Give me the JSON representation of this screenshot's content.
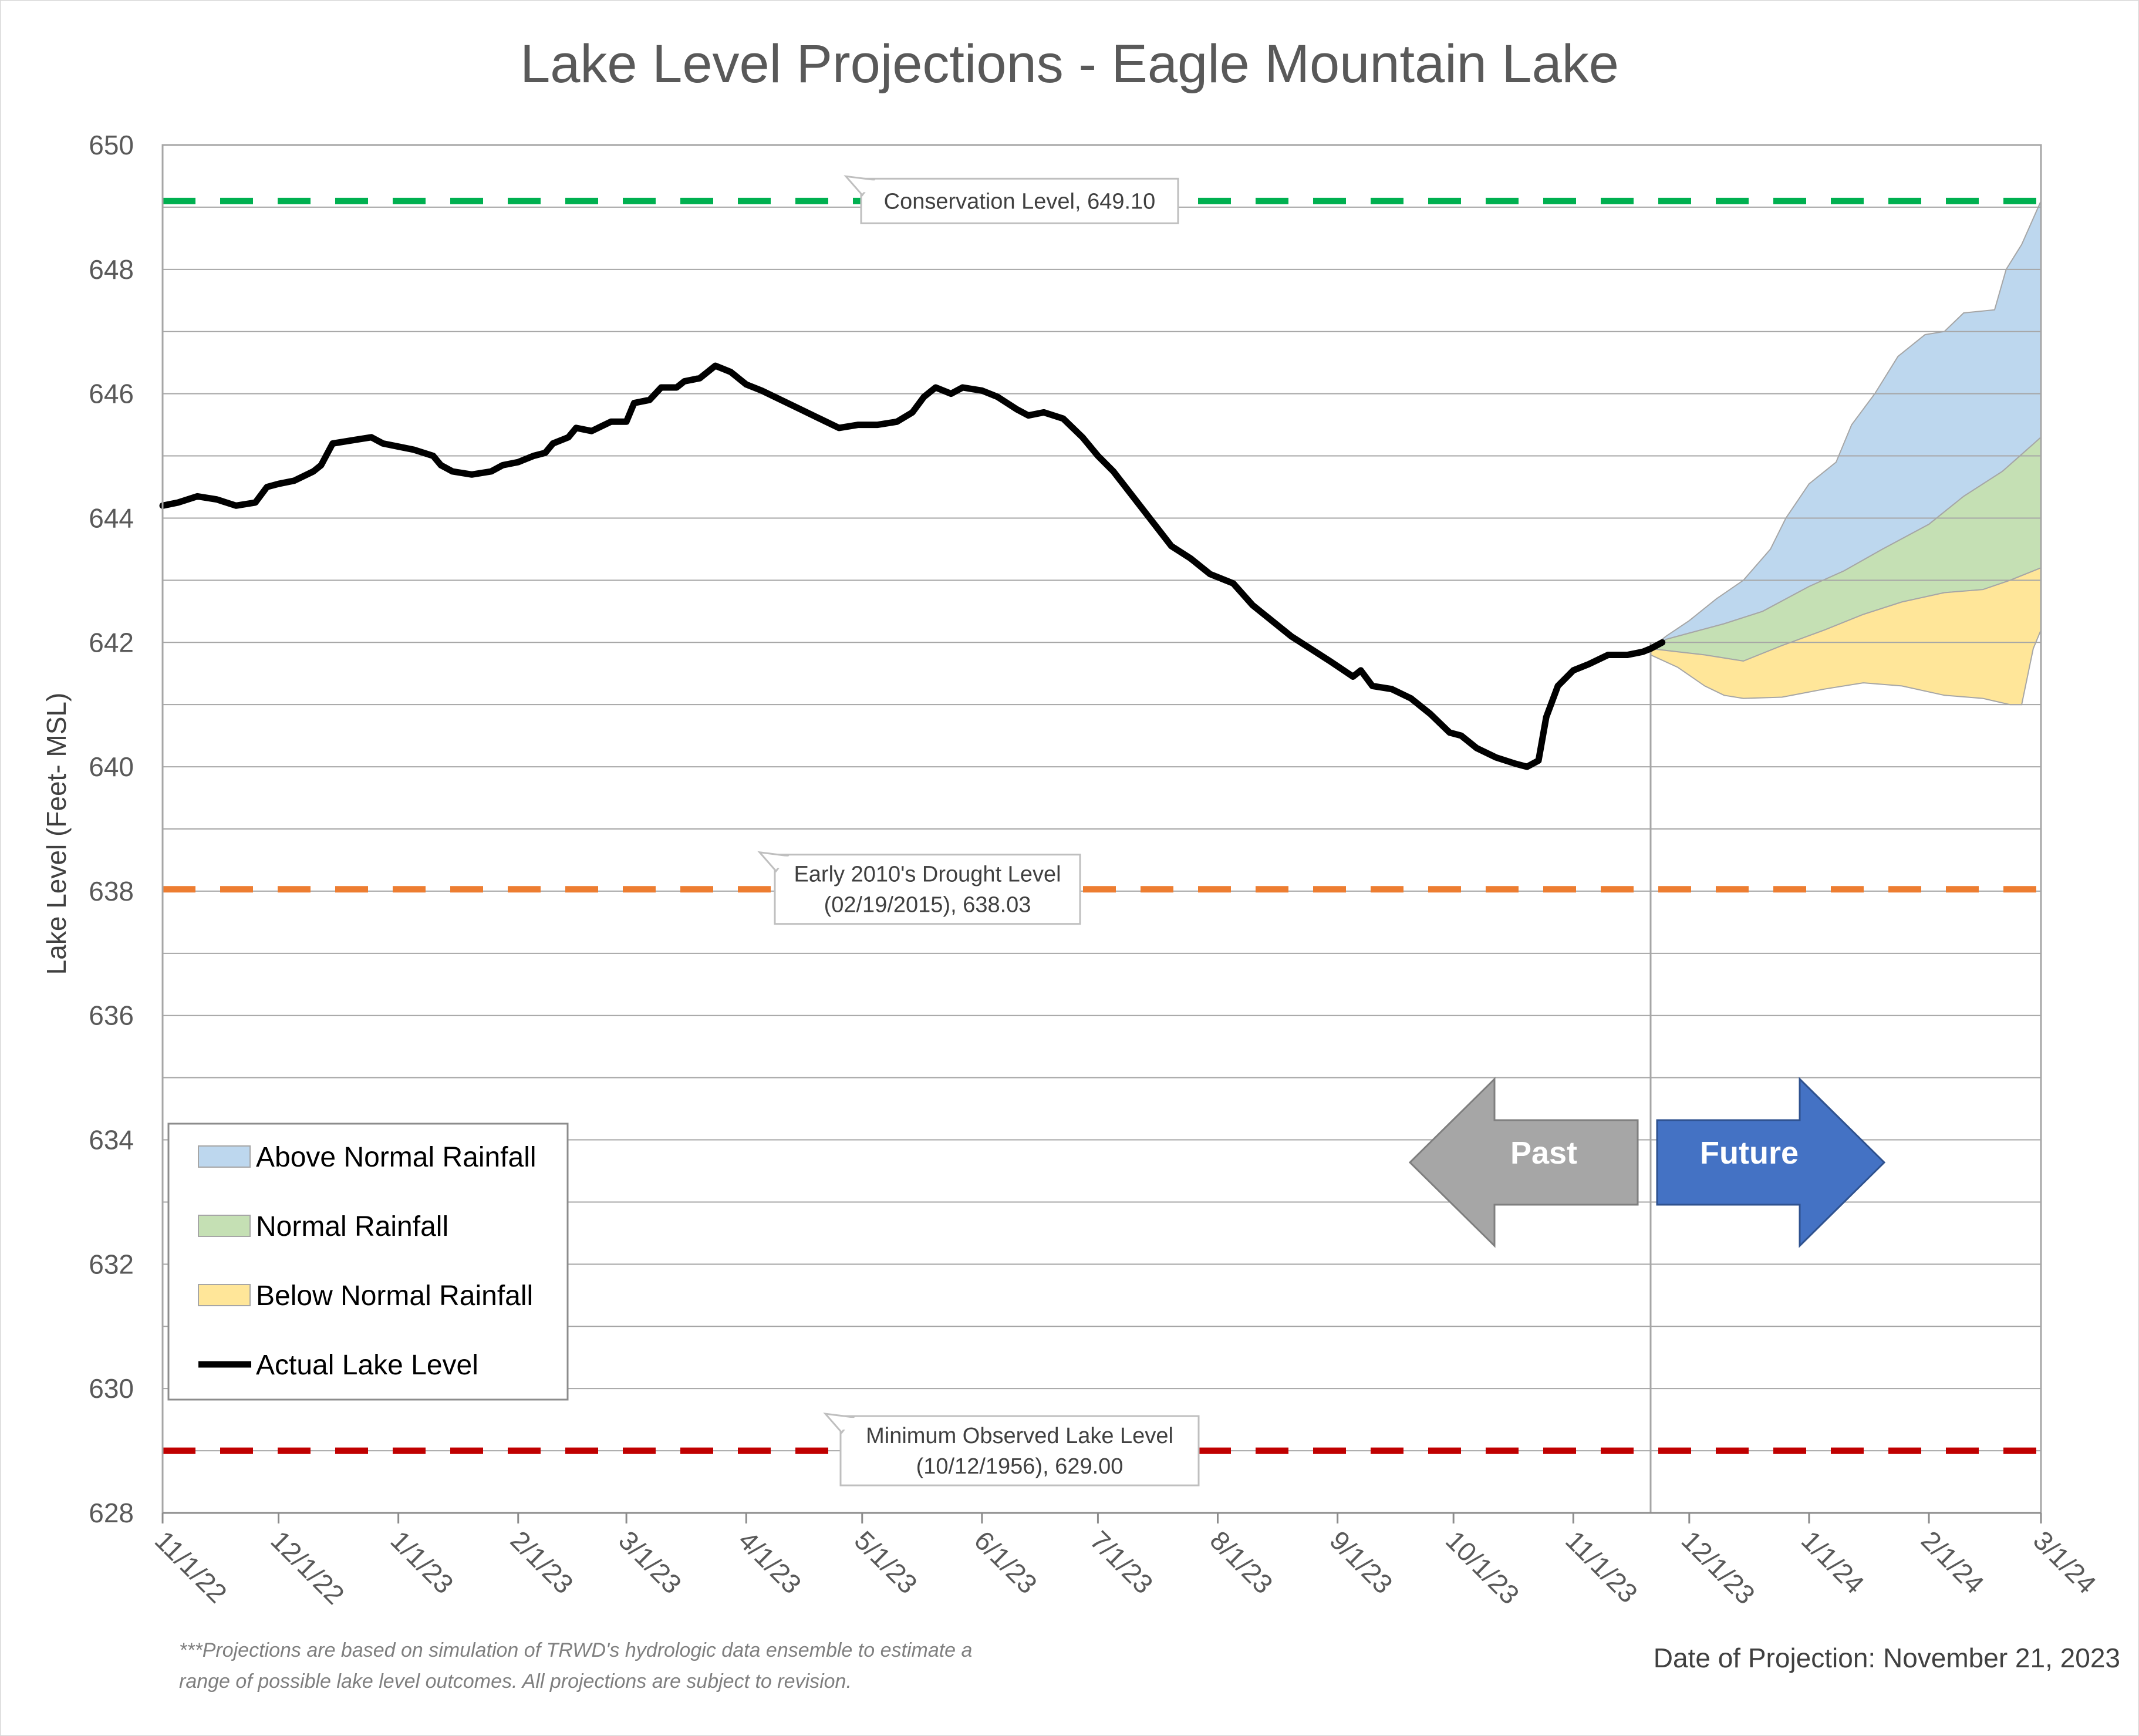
{
  "chart_data": {
    "type": "area",
    "title": "Lake Level Projections - Eagle Mountain Lake",
    "ylabel": "Lake Level (Feet- MSL)",
    "xlabel": "",
    "ylim": [
      628,
      650
    ],
    "yticks": [
      "628",
      "630",
      "632",
      "634",
      "636",
      "638",
      "640",
      "642",
      "644",
      "646",
      "648",
      "650"
    ],
    "xticks": [
      {
        "label": "11/1/22",
        "date": "2022-11-01"
      },
      {
        "label": "12/1/22",
        "date": "2022-12-01"
      },
      {
        "label": "1/1/23",
        "date": "2023-01-01"
      },
      {
        "label": "2/1/23",
        "date": "2023-02-01"
      },
      {
        "label": "3/1/23",
        "date": "2023-03-01"
      },
      {
        "label": "4/1/23",
        "date": "2023-04-01"
      },
      {
        "label": "5/1/23",
        "date": "2023-05-01"
      },
      {
        "label": "6/1/23",
        "date": "2023-06-01"
      },
      {
        "label": "7/1/23",
        "date": "2023-07-01"
      },
      {
        "label": "8/1/23",
        "date": "2023-08-01"
      },
      {
        "label": "9/1/23",
        "date": "2023-09-01"
      },
      {
        "label": "10/1/23",
        "date": "2023-10-01"
      },
      {
        "label": "11/1/23",
        "date": "2023-11-01"
      },
      {
        "label": "12/1/23",
        "date": "2023-12-01"
      },
      {
        "label": "1/1/24",
        "date": "2024-01-01"
      },
      {
        "label": "2/1/24",
        "date": "2024-02-01"
      },
      {
        "label": "3/1/24",
        "date": "2024-03-01"
      }
    ],
    "grid": true,
    "legend_position": "bottom-left",
    "legend": [
      {
        "label": "Above Normal Rainfall",
        "kind": "area",
        "color": "#bdd7ee"
      },
      {
        "label": "Normal Rainfall",
        "kind": "area",
        "color": "#c5e0b4"
      },
      {
        "label": "Below Normal Rainfall",
        "kind": "area",
        "color": "#ffe699"
      },
      {
        "label": "Actual Lake Level",
        "kind": "line",
        "color": "#000000"
      }
    ],
    "reference_lines": [
      {
        "value": 649.1,
        "color": "#00b050",
        "label_lines": [
          "Conservation Level, 649.10"
        ]
      },
      {
        "value": 638.03,
        "color": "#ed7d31",
        "label_lines": [
          "Early 2010's Drought Level",
          "(02/19/2015), 638.03"
        ]
      },
      {
        "value": 629.0,
        "color": "#c00000",
        "label_lines": [
          "Minimum Observed Lake Level",
          "(10/12/1956), 629.00"
        ]
      }
    ],
    "projection_start": "2023-11-21",
    "series": [
      {
        "name": "Actual Lake Level",
        "kind": "line",
        "color": "#000000",
        "points": [
          [
            "2022-11-01",
            644.2
          ],
          [
            "2022-11-05",
            644.25
          ],
          [
            "2022-11-10",
            644.35
          ],
          [
            "2022-11-15",
            644.3
          ],
          [
            "2022-11-20",
            644.2
          ],
          [
            "2022-11-25",
            644.25
          ],
          [
            "2022-11-28",
            644.5
          ],
          [
            "2022-12-01",
            644.55
          ],
          [
            "2022-12-05",
            644.6
          ],
          [
            "2022-12-10",
            644.75
          ],
          [
            "2022-12-12",
            644.85
          ],
          [
            "2022-12-15",
            645.2
          ],
          [
            "2022-12-20",
            645.25
          ],
          [
            "2022-12-25",
            645.3
          ],
          [
            "2022-12-28",
            645.2
          ],
          [
            "2023-01-01",
            645.15
          ],
          [
            "2023-01-05",
            645.1
          ],
          [
            "2023-01-10",
            645.0
          ],
          [
            "2023-01-12",
            644.85
          ],
          [
            "2023-01-15",
            644.75
          ],
          [
            "2023-01-20",
            644.7
          ],
          [
            "2023-01-25",
            644.75
          ],
          [
            "2023-01-28",
            644.85
          ],
          [
            "2023-02-01",
            644.9
          ],
          [
            "2023-02-05",
            645.0
          ],
          [
            "2023-02-08",
            645.05
          ],
          [
            "2023-02-10",
            645.2
          ],
          [
            "2023-02-14",
            645.3
          ],
          [
            "2023-02-16",
            645.45
          ],
          [
            "2023-02-20",
            645.4
          ],
          [
            "2023-02-25",
            645.55
          ],
          [
            "2023-03-01",
            645.55
          ],
          [
            "2023-03-03",
            645.85
          ],
          [
            "2023-03-07",
            645.9
          ],
          [
            "2023-03-10",
            646.1
          ],
          [
            "2023-03-14",
            646.1
          ],
          [
            "2023-03-16",
            646.2
          ],
          [
            "2023-03-20",
            646.25
          ],
          [
            "2023-03-24",
            646.45
          ],
          [
            "2023-03-28",
            646.35
          ],
          [
            "2023-04-01",
            646.15
          ],
          [
            "2023-04-05",
            646.05
          ],
          [
            "2023-04-10",
            645.9
          ],
          [
            "2023-04-15",
            645.75
          ],
          [
            "2023-04-20",
            645.6
          ],
          [
            "2023-04-25",
            645.45
          ],
          [
            "2023-04-30",
            645.5
          ],
          [
            "2023-05-05",
            645.5
          ],
          [
            "2023-05-10",
            645.55
          ],
          [
            "2023-05-14",
            645.7
          ],
          [
            "2023-05-17",
            645.95
          ],
          [
            "2023-05-20",
            646.1
          ],
          [
            "2023-05-24",
            646.0
          ],
          [
            "2023-05-27",
            646.1
          ],
          [
            "2023-06-01",
            646.05
          ],
          [
            "2023-06-05",
            645.95
          ],
          [
            "2023-06-10",
            645.75
          ],
          [
            "2023-06-13",
            645.65
          ],
          [
            "2023-06-17",
            645.7
          ],
          [
            "2023-06-22",
            645.6
          ],
          [
            "2023-06-27",
            645.3
          ],
          [
            "2023-07-01",
            645.0
          ],
          [
            "2023-07-05",
            644.75
          ],
          [
            "2023-07-10",
            644.35
          ],
          [
            "2023-07-15",
            643.95
          ],
          [
            "2023-07-20",
            643.55
          ],
          [
            "2023-07-25",
            643.35
          ],
          [
            "2023-07-30",
            643.1
          ],
          [
            "2023-08-05",
            642.95
          ],
          [
            "2023-08-10",
            642.6
          ],
          [
            "2023-08-15",
            642.35
          ],
          [
            "2023-08-20",
            642.1
          ],
          [
            "2023-08-25",
            641.9
          ],
          [
            "2023-08-30",
            641.7
          ],
          [
            "2023-09-05",
            641.45
          ],
          [
            "2023-09-07",
            641.55
          ],
          [
            "2023-09-10",
            641.3
          ],
          [
            "2023-09-15",
            641.25
          ],
          [
            "2023-09-20",
            641.1
          ],
          [
            "2023-09-25",
            640.85
          ],
          [
            "2023-09-30",
            640.55
          ],
          [
            "2023-10-03",
            640.5
          ],
          [
            "2023-10-07",
            640.3
          ],
          [
            "2023-10-12",
            640.15
          ],
          [
            "2023-10-17",
            640.05
          ],
          [
            "2023-10-20",
            640.0
          ],
          [
            "2023-10-23",
            640.1
          ],
          [
            "2023-10-25",
            640.8
          ],
          [
            "2023-10-28",
            641.3
          ],
          [
            "2023-11-01",
            641.55
          ],
          [
            "2023-11-05",
            641.65
          ],
          [
            "2023-11-10",
            641.8
          ],
          [
            "2023-11-15",
            641.8
          ],
          [
            "2023-11-19",
            641.85
          ],
          [
            "2023-11-21",
            641.9
          ],
          [
            "2023-11-24",
            642.0
          ]
        ]
      },
      {
        "name": "Above Normal Rainfall",
        "kind": "band",
        "color": "#bdd7ee",
        "upper": [
          [
            "2023-11-21",
            641.9
          ],
          [
            "2023-11-25",
            642.1
          ],
          [
            "2023-12-01",
            642.35
          ],
          [
            "2023-12-08",
            642.7
          ],
          [
            "2023-12-15",
            643.0
          ],
          [
            "2023-12-22",
            643.5
          ],
          [
            "2023-12-26",
            644.0
          ],
          [
            "2024-01-01",
            644.55
          ],
          [
            "2024-01-08",
            644.9
          ],
          [
            "2024-01-12",
            645.5
          ],
          [
            "2024-01-18",
            646.0
          ],
          [
            "2024-01-24",
            646.6
          ],
          [
            "2024-01-31",
            646.95
          ],
          [
            "2024-02-05",
            647.0
          ],
          [
            "2024-02-10",
            647.3
          ],
          [
            "2024-02-18",
            647.35
          ],
          [
            "2024-02-21",
            648.0
          ],
          [
            "2024-02-25",
            648.4
          ],
          [
            "2024-03-01",
            649.1
          ]
        ],
        "lower": [
          [
            "2023-11-21",
            641.9
          ],
          [
            "2023-11-25",
            642.05
          ],
          [
            "2023-12-01",
            642.15
          ],
          [
            "2023-12-10",
            642.3
          ],
          [
            "2023-12-20",
            642.5
          ],
          [
            "2024-01-01",
            642.9
          ],
          [
            "2024-01-10",
            643.15
          ],
          [
            "2024-01-20",
            643.5
          ],
          [
            "2024-02-01",
            643.9
          ],
          [
            "2024-02-10",
            644.35
          ],
          [
            "2024-02-20",
            644.75
          ],
          [
            "2024-03-01",
            645.3
          ]
        ]
      },
      {
        "name": "Normal Rainfall",
        "kind": "band",
        "color": "#c5e0b4",
        "upper": [
          [
            "2023-11-21",
            641.9
          ],
          [
            "2023-11-25",
            642.05
          ],
          [
            "2023-12-01",
            642.15
          ],
          [
            "2023-12-10",
            642.3
          ],
          [
            "2023-12-20",
            642.5
          ],
          [
            "2024-01-01",
            642.9
          ],
          [
            "2024-01-10",
            643.15
          ],
          [
            "2024-01-20",
            643.5
          ],
          [
            "2024-02-01",
            643.9
          ],
          [
            "2024-02-10",
            644.35
          ],
          [
            "2024-02-20",
            644.75
          ],
          [
            "2024-03-01",
            645.3
          ]
        ],
        "lower": [
          [
            "2023-11-21",
            641.9
          ],
          [
            "2023-11-28",
            641.85
          ],
          [
            "2023-12-05",
            641.8
          ],
          [
            "2023-12-15",
            641.7
          ],
          [
            "2023-12-25",
            641.95
          ],
          [
            "2024-01-05",
            642.2
          ],
          [
            "2024-01-15",
            642.45
          ],
          [
            "2024-01-25",
            642.65
          ],
          [
            "2024-02-05",
            642.8
          ],
          [
            "2024-02-15",
            642.85
          ],
          [
            "2024-02-22",
            643.0
          ],
          [
            "2024-03-01",
            643.2
          ]
        ]
      },
      {
        "name": "Below Normal Rainfall",
        "kind": "band",
        "color": "#ffe699",
        "upper": [
          [
            "2023-11-21",
            641.9
          ],
          [
            "2023-11-28",
            641.85
          ],
          [
            "2023-12-05",
            641.8
          ],
          [
            "2023-12-15",
            641.7
          ],
          [
            "2023-12-25",
            641.95
          ],
          [
            "2024-01-05",
            642.2
          ],
          [
            "2024-01-15",
            642.45
          ],
          [
            "2024-01-25",
            642.65
          ],
          [
            "2024-02-05",
            642.8
          ],
          [
            "2024-02-15",
            642.85
          ],
          [
            "2024-02-22",
            643.0
          ],
          [
            "2024-03-01",
            643.2
          ]
        ],
        "lower": [
          [
            "2023-11-21",
            641.8
          ],
          [
            "2023-11-28",
            641.6
          ],
          [
            "2023-12-05",
            641.3
          ],
          [
            "2023-12-10",
            641.15
          ],
          [
            "2023-12-15",
            641.1
          ],
          [
            "2023-12-25",
            641.12
          ],
          [
            "2024-01-05",
            641.25
          ],
          [
            "2024-01-15",
            641.35
          ],
          [
            "2024-01-25",
            641.3
          ],
          [
            "2024-02-05",
            641.15
          ],
          [
            "2024-02-15",
            641.1
          ],
          [
            "2024-02-22",
            641.0
          ],
          [
            "2024-02-25",
            641.0
          ],
          [
            "2024-02-28",
            641.9
          ],
          [
            "2024-03-01",
            642.2
          ]
        ]
      }
    ]
  },
  "arrows": {
    "past": "Past",
    "future": "Future",
    "past_color": "#a6a6a6",
    "future_color": "#4472c4"
  },
  "footnote_lines": [
    "***Projections are based on simulation of TRWD's hydrologic data ensemble to estimate a",
    "range of possible lake level outcomes.  All projections are subject to revision."
  ],
  "projection_date": "Date of Projection: November 21, 2023"
}
